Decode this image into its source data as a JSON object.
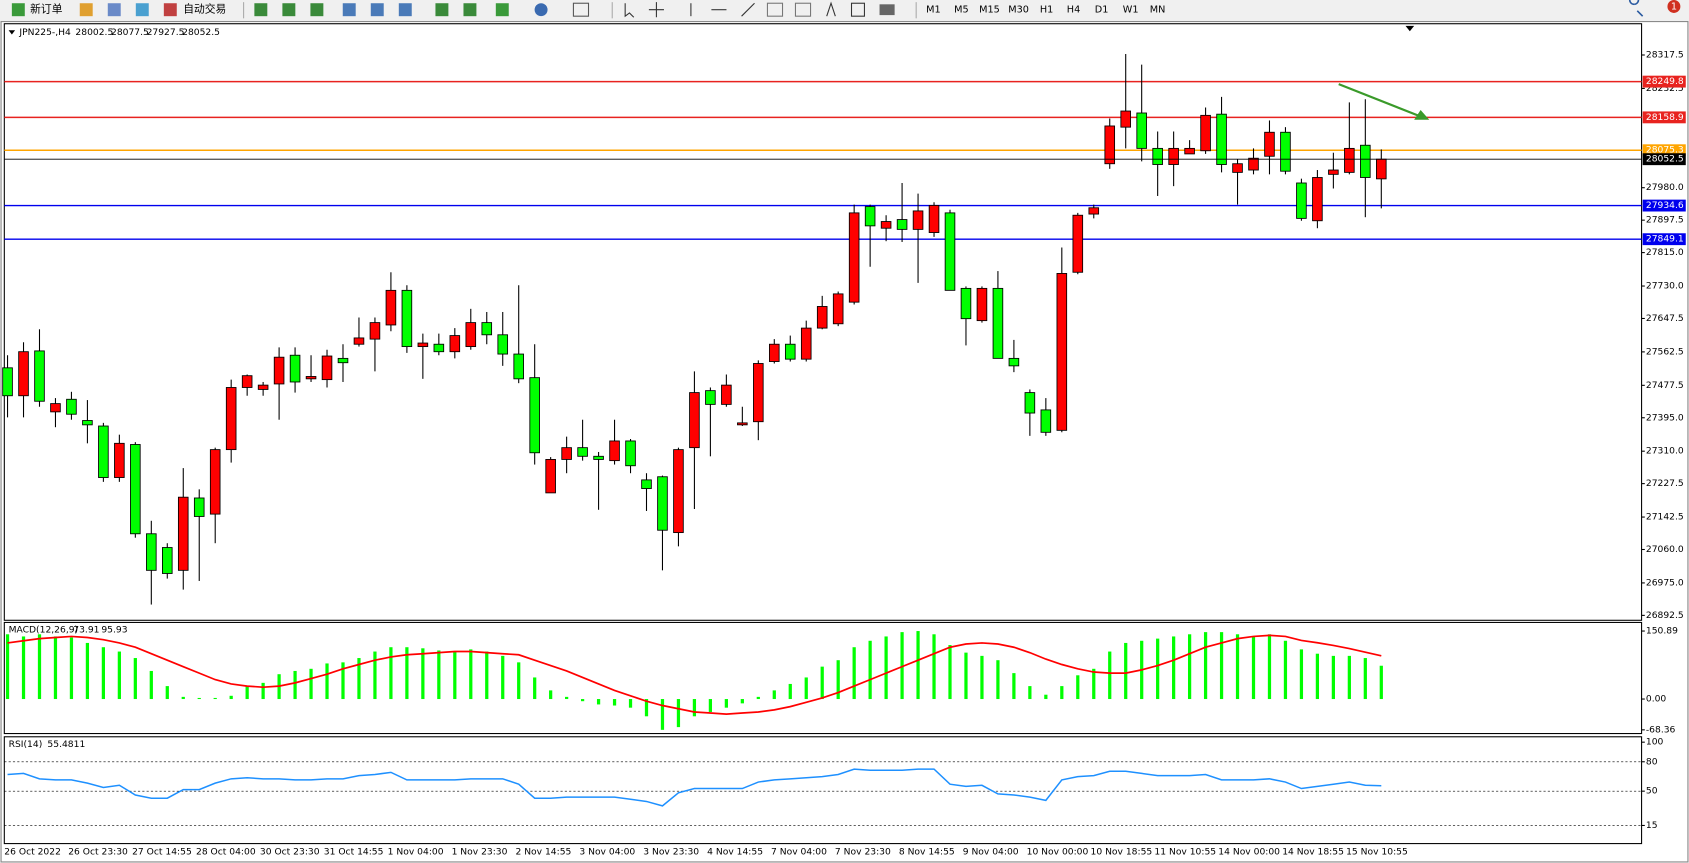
{
  "toolbar": {
    "new_order": "新订单",
    "auto_trading": "自动交易",
    "timeframes": [
      "M1",
      "M5",
      "M15",
      "M30",
      "H1",
      "H4",
      "D1",
      "W1",
      "MN"
    ],
    "notifications": "1"
  },
  "chart_data": [
    {
      "type": "candlestick",
      "title": "JPN225-,H4",
      "categories": [
        "26 Oct 2022",
        null,
        null,
        null,
        "26 Oct 23:30",
        null,
        null,
        null,
        "27 Oct 14:55",
        null,
        null,
        null,
        "28 Oct 04:00",
        null,
        null,
        null,
        "30 Oct 23:30",
        null,
        null,
        null,
        "31 Oct 14:55",
        null,
        null,
        null,
        "1 Nov 04:00",
        null,
        null,
        null,
        "1 Nov 23:30",
        null,
        null,
        null,
        "2 Nov 14:55",
        null,
        null,
        null,
        "3 Nov 04:00",
        null,
        null,
        null,
        "3 Nov 23:30",
        null,
        null,
        null,
        "4 Nov 14:55",
        null,
        null,
        null,
        "7 Nov 04:00",
        null,
        null,
        null,
        "7 Nov 23:30",
        null,
        null,
        null,
        "8 Nov 14:55",
        null,
        null,
        null,
        "9 Nov 04:00",
        null,
        null,
        null,
        "10 Nov 00:00",
        null,
        null,
        null,
        "10 Nov 18:55",
        null,
        null,
        null,
        "11 Nov 10:55",
        null,
        null,
        null,
        "14 Nov 00:00",
        null,
        null,
        null,
        "14 Nov 18:55",
        null,
        null,
        null,
        "15 Nov 10:55",
        null,
        null
      ],
      "ohlc": [
        [
          27522,
          27554,
          27396,
          27451
        ],
        [
          27451,
          27587,
          27396,
          27563
        ],
        [
          27565,
          27620,
          27423,
          27437
        ],
        [
          27410,
          27445,
          27371,
          27431
        ],
        [
          27442,
          27461,
          27390,
          27404
        ],
        [
          27388,
          27440,
          27330,
          27377
        ],
        [
          27374,
          27382,
          27232,
          27243
        ],
        [
          27243,
          27352,
          27232,
          27330
        ],
        [
          27327,
          27333,
          27090,
          27100
        ],
        [
          27100,
          27133,
          26920,
          27007
        ],
        [
          27065,
          27076,
          26986,
          26999
        ],
        [
          27007,
          27267,
          26958,
          27193
        ],
        [
          27191,
          27213,
          26980,
          27144
        ],
        [
          27150,
          27319,
          27076,
          27314
        ],
        [
          27314,
          27492,
          27281,
          27472
        ],
        [
          27472,
          27505,
          27451,
          27502
        ],
        [
          27467,
          27486,
          27451,
          27478
        ],
        [
          27481,
          27574,
          27390,
          27549
        ],
        [
          27554,
          27574,
          27459,
          27486
        ],
        [
          27494,
          27554,
          27486,
          27500
        ],
        [
          27492,
          27568,
          27472,
          27552
        ],
        [
          27546,
          27582,
          27486,
          27535
        ],
        [
          27582,
          27650,
          27576,
          27598
        ],
        [
          27595,
          27650,
          27513,
          27637
        ],
        [
          27631,
          27765,
          27615,
          27719
        ],
        [
          27719,
          27732,
          27560,
          27576
        ],
        [
          27576,
          27609,
          27494,
          27585
        ],
        [
          27582,
          27609,
          27554,
          27563
        ],
        [
          27563,
          27623,
          27546,
          27604
        ],
        [
          27576,
          27672,
          27568,
          27637
        ],
        [
          27637,
          27664,
          27582,
          27606
        ],
        [
          27606,
          27664,
          27527,
          27557
        ],
        [
          27557,
          27732,
          27483,
          27494
        ],
        [
          27497,
          27582,
          27276,
          27306
        ],
        [
          27204,
          27295,
          27204,
          27289
        ],
        [
          27289,
          27347,
          27254,
          27319
        ],
        [
          27319,
          27390,
          27286,
          27297
        ],
        [
          27297,
          27308,
          27161,
          27289
        ],
        [
          27286,
          27390,
          27276,
          27336
        ],
        [
          27336,
          27341,
          27254,
          27273
        ],
        [
          27237,
          27254,
          27158,
          27215
        ],
        [
          27245,
          27248,
          27007,
          27109
        ],
        [
          27103,
          27319,
          27068,
          27314
        ],
        [
          27319,
          27513,
          27163,
          27459
        ],
        [
          27464,
          27472,
          27297,
          27429
        ],
        [
          27429,
          27505,
          27423,
          27478
        ],
        [
          27377,
          27423,
          27374,
          27382
        ],
        [
          27385,
          27541,
          27338,
          27533
        ],
        [
          27538,
          27595,
          27533,
          27582
        ],
        [
          27582,
          27604,
          27538,
          27544
        ],
        [
          27544,
          27642,
          27538,
          27623
        ],
        [
          27623,
          27705,
          27620,
          27678
        ],
        [
          27634,
          27716,
          27628,
          27710
        ],
        [
          27689,
          27937,
          27683,
          27916
        ],
        [
          27932,
          27937,
          27779,
          27883
        ],
        [
          27877,
          27910,
          27844,
          27894
        ],
        [
          27899,
          27992,
          27842,
          27874
        ],
        [
          27874,
          27965,
          27738,
          27921
        ],
        [
          27866,
          27943,
          27855,
          27935
        ],
        [
          27916,
          27924,
          27719,
          27719
        ],
        [
          27724,
          27729,
          27579,
          27647
        ],
        [
          27642,
          27729,
          27637,
          27724
        ],
        [
          27724,
          27768,
          27546,
          27546
        ],
        [
          27546,
          27593,
          27511,
          27527
        ],
        [
          27459,
          27467,
          27349,
          27407
        ],
        [
          27415,
          27445,
          27349,
          27358
        ],
        [
          27363,
          27828,
          27358,
          27762
        ],
        [
          27765,
          27916,
          27760,
          27910
        ],
        [
          27913,
          27937,
          27902,
          27929
        ],
        [
          28041,
          28156,
          28028,
          28137
        ],
        [
          28134,
          28320,
          28080,
          28175
        ],
        [
          28170,
          28293,
          28047,
          28080
        ],
        [
          28080,
          28123,
          27959,
          28039
        ],
        [
          28039,
          28123,
          27984,
          28080
        ],
        [
          28066,
          28101,
          28066,
          28080
        ],
        [
          28074,
          28184,
          28066,
          28164
        ],
        [
          28167,
          28211,
          28019,
          28039
        ],
        [
          28019,
          28052,
          27937,
          28041
        ],
        [
          28025,
          28080,
          28014,
          28055
        ],
        [
          28060,
          28151,
          28014,
          28121
        ],
        [
          28121,
          28134,
          28014,
          28022
        ],
        [
          27992,
          28003,
          27896,
          27902
        ],
        [
          27896,
          28025,
          27877,
          28006
        ],
        [
          28014,
          28069,
          27978,
          28025
        ],
        [
          28019,
          28197,
          28014,
          28080
        ],
        [
          28088,
          28205,
          27905,
          28006
        ],
        [
          28002.5,
          28077.5,
          27927.5,
          28052.5
        ]
      ],
      "up_color": "#ff0000",
      "down_color": "#00ff00",
      "ylim": [
        26880,
        28397
      ],
      "yticks": [
        28317.5,
        28232.5,
        {
          "value": 27980,
          "label": "27980.0"
        },
        27897.5,
        {
          "value": 27815,
          "label": "27815.0"
        },
        {
          "value": 27730,
          "label": "27730.0"
        },
        27647.5,
        27562.5,
        27477.5,
        {
          "value": 27395,
          "label": "27395.0"
        },
        {
          "value": 27310,
          "label": "27310.0"
        },
        27227.5,
        27142.5,
        {
          "value": 27060,
          "label": "27060.0"
        },
        {
          "value": 26975,
          "label": "26975.0"
        },
        26892.5
      ],
      "price_lines": [
        {
          "value": 28249.8,
          "color": "#e8231f"
        },
        {
          "value": 28158.9,
          "color": "#e8231f"
        },
        {
          "value": 28075.3,
          "color": "#ffa500"
        },
        {
          "value": 27934.6,
          "color": "#0000ee"
        },
        {
          "value": 27849.1,
          "color": "#0000ee"
        }
      ],
      "current_color": "#000000"
    },
    {
      "type": "macd",
      "title": "MACD(12,26,9)",
      "values": [
        143.7,
        138.9,
        143.7,
        138.9,
        136.5,
        124.5,
        115.0,
        105.4,
        91.0,
        62.3,
        28.7,
        4.8,
        2.4,
        2.4,
        7.2,
        28.7,
        35.9,
        55.1,
        62.3,
        67.1,
        79.0,
        81.4,
        91.0,
        105.4,
        115.0,
        115.0,
        112.6,
        107.8,
        105.4,
        110.2,
        105.4,
        95.8,
        81.4,
        47.9,
        19.2,
        4.8,
        -4.8,
        -12.0,
        -14.4,
        -19.2,
        -38.3,
        -68.36,
        -62.3,
        -38.3,
        -28.7,
        -19.2,
        -9.6,
        4.8,
        19.2,
        33.5,
        47.9,
        71.9,
        86.2,
        115.0,
        129.3,
        138.9,
        148.5,
        150.89,
        143.7,
        119.8,
        103.0,
        95.8,
        86.2,
        57.5,
        28.7,
        9.6,
        28.7,
        52.7,
        67.1,
        105.4,
        124.5,
        129.3,
        134.1,
        138.9,
        143.7,
        148.5,
        148.5,
        143.7,
        138.9,
        143.7,
        129.3,
        110.2,
        100.6,
        95.8,
        95.8,
        91.0,
        73.91
      ],
      "color": "#00ff00",
      "signal": [
        124.5,
        129.3,
        134.1,
        136.5,
        138.9,
        136.5,
        131.7,
        124.5,
        115.0,
        100.6,
        86.2,
        71.9,
        57.5,
        43.1,
        33.5,
        28.7,
        26.3,
        28.7,
        35.9,
        45.5,
        55.1,
        67.1,
        76.6,
        86.2,
        93.4,
        98.2,
        100.6,
        103.0,
        105.4,
        105.4,
        103.0,
        100.6,
        98.2,
        86.2,
        74.2,
        62.3,
        47.9,
        33.5,
        19.2,
        7.2,
        -4.8,
        -14.4,
        -21.6,
        -28.7,
        -31.1,
        -33.5,
        -31.1,
        -28.7,
        -24.0,
        -16.8,
        -7.2,
        2.4,
        14.4,
        28.7,
        43.1,
        57.5,
        71.9,
        86.2,
        100.6,
        115.0,
        122.1,
        124.5,
        122.1,
        115.0,
        103.0,
        88.6,
        76.6,
        67.1,
        59.9,
        57.5,
        57.5,
        64.7,
        74.2,
        86.2,
        100.6,
        115.0,
        124.5,
        134.1,
        138.9,
        141.3,
        138.9,
        130,
        125,
        119,
        112,
        104,
        95.93
      ],
      "signal_color": "#ff0000",
      "ylim": [
        -79,
        167.6
      ],
      "yticks": [
        150.89,
        {
          "value": 0,
          "label": "0.00"
        },
        -68.36
      ]
    },
    {
      "type": "line",
      "title": "RSI(14)",
      "values": [
        67.0,
        68.1,
        62.6,
        61.5,
        61.5,
        58.2,
        53.8,
        56.0,
        46.1,
        42.8,
        42.8,
        51.6,
        51.6,
        58.2,
        62.6,
        63.7,
        62.6,
        62.6,
        61.5,
        61.5,
        62.6,
        62.6,
        65.9,
        67.0,
        69.2,
        61.5,
        61.5,
        61.5,
        61.5,
        62.6,
        62.6,
        62.6,
        57.1,
        42.8,
        42.8,
        43.9,
        43.9,
        43.9,
        43.9,
        41.7,
        39.5,
        35.0,
        48.3,
        52.7,
        52.7,
        52.7,
        52.7,
        59.3,
        61.5,
        62.6,
        63.7,
        64.8,
        67.0,
        72.5,
        71.4,
        71.4,
        71.4,
        72.5,
        72.5,
        57.1,
        54.9,
        56.0,
        47.2,
        46.1,
        43.9,
        40.6,
        61.5,
        64.8,
        65.9,
        70.3,
        70.3,
        68.1,
        65.9,
        65.9,
        65.9,
        67.0,
        61.5,
        61.5,
        61.5,
        62.6,
        59.3,
        52.7,
        54.9,
        57.1,
        59.3,
        56.0,
        55.4811
      ],
      "color": "#1e90ff",
      "ylim": [
        -3.5,
        105.5
      ],
      "yticks": [
        100,
        80,
        50,
        15
      ],
      "levels": [
        80,
        50,
        15
      ]
    }
  ]
}
